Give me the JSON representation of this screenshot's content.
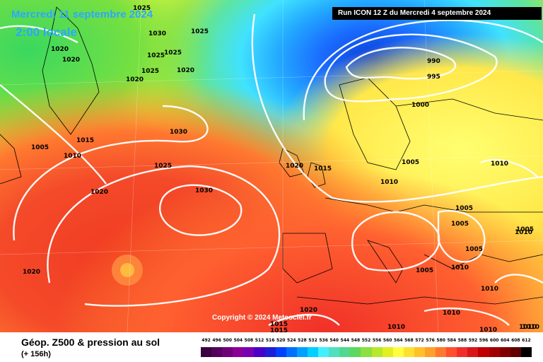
{
  "header": {
    "date_title": "Mercredi 11 septembre 2024",
    "time_title": "2:00 locale",
    "run_info": "Run ICON 12 Z du Mercredi 4 septembre 2024"
  },
  "footer": {
    "product_title": "Géop. Z500 & pression au sol",
    "lead_time": "(+ 156h)",
    "copyright": "Copyright © 2024 Meteociel.fr"
  },
  "legend": {
    "values": [
      "492",
      "496",
      "500",
      "504",
      "508",
      "512",
      "516",
      "520",
      "524",
      "528",
      "532",
      "536",
      "540",
      "544",
      "548",
      "552",
      "556",
      "560",
      "564",
      "568",
      "572",
      "576",
      "580",
      "584",
      "588",
      "592",
      "596",
      "600",
      "604",
      "608",
      "612"
    ],
    "colors": [
      "#3a0040",
      "#55005c",
      "#70007a",
      "#8c0096",
      "#7a00b4",
      "#4b00c8",
      "#1e1ed8",
      "#0040ff",
      "#0070ff",
      "#00a0ff",
      "#00cfff",
      "#40f0ff",
      "#50e0c0",
      "#4fd890",
      "#5cd860",
      "#8ce040",
      "#b8e82c",
      "#e0f020",
      "#ffff40",
      "#ffe030",
      "#ffc02a",
      "#ffa02a",
      "#ff7830",
      "#ff5030",
      "#f03028",
      "#d81818",
      "#c00000",
      "#a00000",
      "#800000",
      "#600000",
      "#000000"
    ]
  },
  "map": {
    "description_colors": {
      "low": "#1080ff",
      "mid": "#ffff40",
      "high": "#f03028",
      "isobar": "#ffffff"
    },
    "isobar_labels": [
      "1025",
      "1030",
      "1025",
      "1020",
      "1020",
      "1025",
      "1025",
      "1020",
      "1025",
      "1020",
      "1015",
      "1010",
      "1005",
      "1030",
      "1025",
      "1020",
      "1030",
      "1020",
      "1020",
      "1015",
      "1010",
      "990",
      "995",
      "1000",
      "1005",
      "1010",
      "1010",
      "1005",
      "1005",
      "1005",
      "1005",
      "1010",
      "1010",
      "1010",
      "1010",
      "1015",
      "1015",
      "1020",
      "1010",
      "1010",
      "1010",
      "1005"
    ]
  }
}
